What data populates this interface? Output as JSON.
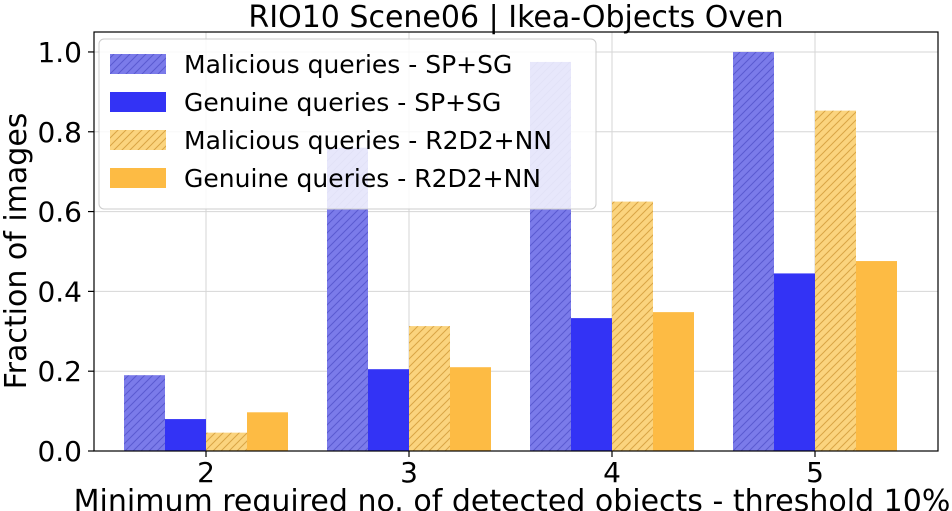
{
  "chart_data": {
    "type": "bar",
    "title": "RIO10 Scene06 | Ikea-Objects Oven",
    "xlabel": "Minimum required no. of detected objects - threshold 10%",
    "ylabel": "Fraction of images",
    "categories": [
      "2",
      "3",
      "4",
      "5"
    ],
    "ylim": [
      0,
      1.05
    ],
    "yticks": [
      "0.0",
      "0.2",
      "0.4",
      "0.6",
      "0.8",
      "1.0"
    ],
    "grid": true,
    "legend_position": "upper-left",
    "series": [
      {
        "name": "Malicious queries - SP+SG",
        "values": [
          0.19,
          0.76,
          0.975,
          1.0
        ],
        "color": "#7b7bea",
        "hatch": true
      },
      {
        "name": "Genuine queries - SP+SG",
        "values": [
          0.08,
          0.205,
          0.333,
          0.445
        ],
        "color": "#3333f5",
        "hatch": false
      },
      {
        "name": "Malicious queries - R2D2+NN",
        "values": [
          0.046,
          0.313,
          0.625,
          0.853
        ],
        "color": "#fbd47e",
        "hatch": true
      },
      {
        "name": "Genuine queries - R2D2+NN",
        "values": [
          0.097,
          0.21,
          0.348,
          0.476
        ],
        "color": "#fdbb44",
        "hatch": false
      }
    ]
  }
}
